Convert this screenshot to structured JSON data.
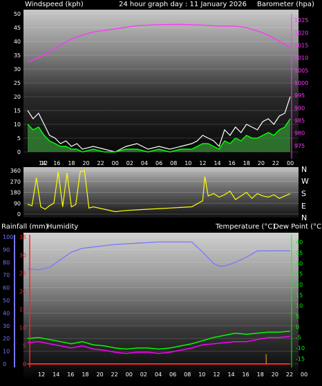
{
  "header": {
    "left_label": "Windspeed (kph)",
    "center_label": "24 hour graph day : 11 January 2026",
    "right_label": "Barometer (hpa)"
  },
  "mid_header": {
    "rainfall_label": "Rainfall (mm)",
    "humidity_label": "Humidity",
    "temp_label": "Temperature (°C)",
    "dew_label": "Dew Point (°C)"
  },
  "compass_letters": [
    "N",
    "W",
    "S",
    "E",
    "N"
  ],
  "x_ticks": [
    "12",
    "14",
    "16",
    "18",
    "20",
    "22",
    "00",
    "02",
    "04",
    "06",
    "08",
    "10",
    "12",
    "14",
    "16",
    "18",
    "20",
    "22",
    "00"
  ],
  "colors": {
    "wind_gust": "#ffffff",
    "wind_avg": "#00ff00",
    "wind_fill": "#3a9a3a",
    "barometer": "#ff33ff",
    "direction": "#ffff00",
    "humidity": "#7777ff",
    "temperature": "#00ff00",
    "dewpoint": "#ff00ff",
    "rain": "#ff2222",
    "rain_bar": "#ffaa00"
  },
  "chart_data": [
    {
      "type": "line",
      "title": "",
      "ylabel": "Windspeed (kph)",
      "y2label": "Barometer (hpa)",
      "ylim": [
        0,
        50
      ],
      "y2lim": [
        972.5,
        1027.5
      ],
      "y_ticks": [
        0,
        5,
        10,
        15,
        20,
        25,
        30,
        35,
        40,
        45,
        50
      ],
      "y2_ticks": [
        975,
        980,
        985,
        990,
        995,
        1000,
        1005,
        1010,
        1015,
        1020,
        1025
      ],
      "x_hours": [
        0,
        2,
        4,
        6,
        8,
        10,
        12,
        14,
        16,
        18,
        20,
        22,
        24
      ],
      "series": [
        {
          "name": "Barometer",
          "axis": "right",
          "x": [
            0,
            1,
            2,
            3,
            4,
            5,
            6,
            8,
            10,
            12,
            14,
            16,
            17,
            18,
            19,
            20,
            21,
            22,
            23,
            24
          ],
          "values": [
            1008.3,
            1010,
            1012.5,
            1015,
            1017.5,
            1019,
            1020.3,
            1021.5,
            1022.8,
            1023.2,
            1023.3,
            1023,
            1022.7,
            1022.6,
            1022.6,
            1022,
            1020.7,
            1019,
            1016.5,
            1014.1
          ]
        },
        {
          "name": "Wind gust",
          "axis": "left",
          "x": [
            0,
            0.5,
            1,
            1.5,
            2,
            2.5,
            3,
            3.5,
            4,
            4.5,
            5,
            6,
            7,
            8,
            9,
            10,
            11,
            12,
            13,
            14,
            15,
            15.5,
            16,
            16.5,
            17,
            17.5,
            18,
            18.5,
            19,
            19.5,
            20,
            20.5,
            21,
            21.5,
            22,
            22.5,
            23,
            23.5,
            24
          ],
          "values": [
            15,
            12,
            14,
            10,
            6,
            5,
            3,
            4,
            2,
            3,
            1,
            2,
            1,
            0,
            2,
            3,
            1,
            2,
            1,
            2,
            3,
            4,
            6,
            5,
            4,
            2,
            8,
            6,
            9,
            7,
            10,
            9,
            8,
            11,
            12,
            10,
            13,
            14,
            20
          ]
        },
        {
          "name": "Wind average",
          "axis": "left",
          "x": [
            0,
            0.5,
            1,
            1.5,
            2,
            2.5,
            3,
            3.5,
            4,
            4.5,
            5,
            6,
            7,
            8,
            9,
            10,
            11,
            12,
            13,
            14,
            15,
            15.5,
            16,
            16.5,
            17,
            17.5,
            18,
            18.5,
            19,
            19.5,
            20,
            20.5,
            21,
            21.5,
            22,
            22.5,
            23,
            23.5,
            24
          ],
          "values": [
            10,
            8,
            9,
            6,
            4,
            3,
            2,
            2,
            1,
            1,
            0,
            1,
            0,
            0,
            1,
            1,
            0,
            1,
            0,
            1,
            1,
            2,
            3,
            3,
            2,
            1,
            4,
            3,
            5,
            4,
            6,
            5,
            5,
            6,
            7,
            6,
            8,
            9,
            12
          ]
        }
      ]
    },
    {
      "type": "line",
      "title": "",
      "ylabel": "Wind direction",
      "ylim": [
        0,
        360
      ],
      "y_ticks": [
        0,
        90,
        180,
        270,
        360
      ],
      "series": [
        {
          "name": "Direction",
          "x": [
            0,
            0.4,
            0.8,
            1.2,
            1.6,
            2,
            2.4,
            2.8,
            3.2,
            3.6,
            4,
            4.4,
            4.8,
            5.2,
            5.6,
            6,
            7,
            8,
            9,
            10,
            11,
            12,
            13,
            14,
            15,
            16,
            16.2,
            16.5,
            17,
            17.5,
            18,
            18.5,
            19,
            19.5,
            20,
            20.5,
            21,
            21.5,
            22,
            22.5,
            23,
            23.5,
            24
          ],
          "values": [
            80,
            70,
            300,
            60,
            40,
            70,
            90,
            350,
            60,
            340,
            60,
            80,
            350,
            360,
            50,
            60,
            40,
            20,
            30,
            35,
            40,
            45,
            50,
            55,
            60,
            110,
            310,
            150,
            170,
            140,
            160,
            190,
            120,
            150,
            180,
            130,
            170,
            150,
            140,
            160,
            130,
            150,
            170
          ]
        }
      ]
    },
    {
      "type": "line",
      "title": "",
      "ylabel": "Humidity",
      "y2label": "Temperature (°C)",
      "ylim": [
        0,
        100
      ],
      "y_ticks": [
        0,
        10,
        20,
        30,
        40,
        50,
        60,
        70,
        80,
        90,
        100
      ],
      "y2lim": [
        -17.5,
        42.5
      ],
      "y2_ticks": [
        -15,
        -10,
        -5,
        0,
        5,
        10,
        15,
        20,
        25,
        30,
        35,
        40
      ],
      "rain_lim": [
        0,
        35
      ],
      "rain_ticks": [
        0,
        5,
        10,
        15,
        20,
        25,
        30,
        35
      ],
      "series": [
        {
          "name": "Humidity",
          "axis": "left",
          "x": [
            0,
            1,
            2,
            3,
            4,
            5,
            6,
            8,
            10,
            12,
            14,
            15,
            16,
            17,
            17.5,
            18,
            19,
            20,
            21,
            22,
            23,
            24
          ],
          "values": [
            75,
            74,
            76,
            82,
            88,
            91,
            92,
            94,
            95,
            96,
            96,
            96,
            88,
            79,
            77,
            77,
            80,
            84,
            89,
            89,
            89,
            89
          ]
        },
        {
          "name": "Temperature",
          "axis": "right",
          "x": [
            0,
            1,
            2,
            3,
            4,
            5,
            6,
            7,
            8,
            9,
            10,
            11,
            12,
            13,
            14,
            15,
            16,
            17,
            18,
            19,
            20,
            21,
            22,
            23,
            24
          ],
          "values": [
            -5.5,
            -5,
            -6,
            -7,
            -8,
            -7,
            -8.5,
            -9,
            -10,
            -10.5,
            -10,
            -10,
            -10.5,
            -10,
            -9,
            -8,
            -6.5,
            -5,
            -4,
            -3,
            -3.5,
            -3,
            -2.5,
            -2.5,
            -2
          ]
        },
        {
          "name": "Dew Point",
          "axis": "right",
          "x": [
            0,
            1,
            2,
            3,
            4,
            5,
            6,
            7,
            8,
            9,
            10,
            11,
            12,
            13,
            14,
            15,
            16,
            17,
            18,
            19,
            20,
            21,
            22,
            23,
            24
          ],
          "values": [
            -7.5,
            -7,
            -8,
            -9,
            -10,
            -9,
            -10.5,
            -11,
            -12,
            -12.5,
            -12,
            -12,
            -12.5,
            -12,
            -11,
            -10,
            -8.5,
            -8,
            -7.5,
            -7,
            -7,
            -6,
            -5,
            -5,
            -4.5
          ]
        },
        {
          "name": "Rainfall",
          "axis": "rain",
          "x": [
            0,
            24
          ],
          "values": [
            0,
            0
          ]
        }
      ]
    }
  ]
}
